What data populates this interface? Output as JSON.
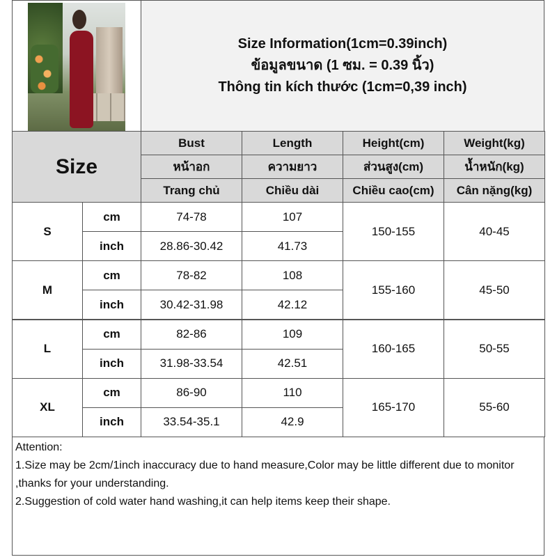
{
  "title_lines": [
    "Size Information(1cm=0.39inch)",
    "ข้อมูลขนาด (1 ซม. = 0.39 นิ้ว)",
    "Thông tin kích thước (1cm=0,39 inch)"
  ],
  "size_label": "Size",
  "columns": [
    {
      "en": "Bust",
      "th": "หน้าอก",
      "vi": "Trang chủ"
    },
    {
      "en": "Length",
      "th": "ความยาว",
      "vi": "Chiều dài"
    },
    {
      "en": "Height(cm)",
      "th": "ส่วนสูง(cm)",
      "vi": "Chiều cao(cm)"
    },
    {
      "en": "Weight(kg)",
      "th": "น้ำหนัก(kg)",
      "vi": "Cân nặng(kg)"
    }
  ],
  "rows": [
    {
      "size": "S",
      "cm": {
        "unit": "cm",
        "bust": "74-78",
        "length": "107"
      },
      "inch": {
        "unit": "inch",
        "bust": "28.86-30.42",
        "length": "41.73"
      },
      "height": "150-155",
      "weight": "40-45"
    },
    {
      "size": "M",
      "cm": {
        "unit": "cm",
        "bust": "78-82",
        "length": "108"
      },
      "inch": {
        "unit": "inch",
        "bust": "30.42-31.98",
        "length": "42.12"
      },
      "height": "155-160",
      "weight": "45-50"
    },
    {
      "size": "L",
      "cm": {
        "unit": "cm",
        "bust": "82-86",
        "length": "109"
      },
      "inch": {
        "unit": "inch",
        "bust": "31.98-33.54",
        "length": "42.51"
      },
      "height": "160-165",
      "weight": "50-55"
    },
    {
      "size": "XL",
      "cm": {
        "unit": "cm",
        "bust": "86-90",
        "length": "110"
      },
      "inch": {
        "unit": "inch",
        "bust": "33.54-35.1",
        "length": "42.9"
      },
      "height": "165-170",
      "weight": "55-60"
    }
  ],
  "notes": [
    "Attention:",
    "1.Size may be 2cm/1inch inaccuracy due to hand measure,Color may be little different due to monitor ,thanks for your understanding.",
    "2.Suggestion of cold water hand washing,it can help items keep their shape."
  ],
  "colors": {
    "header_gray": "#d9d9d9",
    "dress": "#8c1422"
  }
}
